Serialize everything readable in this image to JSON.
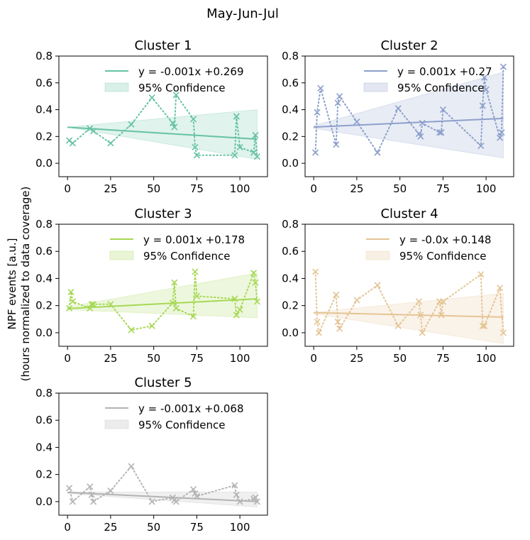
{
  "figure": {
    "title": "May-Jun-Jul",
    "ylabel_line1": "NPF events [a.u.]",
    "ylabel_line2": "(hours normalized to data coverage)"
  },
  "chart_data": [
    {
      "type": "scatter",
      "title": "Cluster 1",
      "color": "#66c2a5",
      "xlim": [
        -5,
        116
      ],
      "ylim": [
        -0.1,
        0.8
      ],
      "xticks": [
        "0",
        "25",
        "50",
        "75",
        "100"
      ],
      "yticks": [
        "0.0",
        "0.2",
        "0.4",
        "0.6",
        "0.8"
      ],
      "fit_label": "y = -0.001x +0.269",
      "ci_label": "95% Confidence",
      "fit": {
        "intercept": 0.269,
        "end": 0.18
      },
      "ci": {
        "upper": [
          0.27,
          0.4
        ],
        "lower": [
          0.27,
          0.03
        ]
      },
      "points": [
        [
          1,
          0.17
        ],
        [
          3,
          0.15
        ],
        [
          13,
          0.26
        ],
        [
          15,
          0.24
        ],
        [
          25,
          0.15
        ],
        [
          37,
          0.29
        ],
        [
          49,
          0.49
        ],
        [
          61,
          0.3
        ],
        [
          62,
          0.27
        ],
        [
          63,
          0.51
        ],
        [
          73,
          0.33
        ],
        [
          74,
          0.12
        ],
        [
          75,
          0.06
        ],
        [
          97,
          0.06
        ],
        [
          98,
          0.35
        ],
        [
          100,
          0.12
        ],
        [
          108,
          0.08
        ],
        [
          109,
          0.21
        ],
        [
          110,
          0.05
        ]
      ]
    },
    {
      "type": "scatter",
      "title": "Cluster 2",
      "color": "#8da0cb",
      "xlim": [
        -5,
        116
      ],
      "ylim": [
        -0.1,
        0.8
      ],
      "xticks": [
        "0",
        "25",
        "50",
        "75",
        "100"
      ],
      "yticks": [
        "0.0",
        "0.2",
        "0.4",
        "0.6",
        "0.8"
      ],
      "fit_label": "y = 0.001x +0.27",
      "ci_label": "95% Confidence",
      "fit": {
        "intercept": 0.27,
        "end": 0.335
      },
      "ci": {
        "upper": [
          0.28,
          0.68
        ],
        "lower": [
          0.26,
          0.04
        ]
      },
      "points": [
        [
          1,
          0.08
        ],
        [
          2,
          0.38
        ],
        [
          4,
          0.56
        ],
        [
          13,
          0.14
        ],
        [
          14,
          0.45
        ],
        [
          15,
          0.5
        ],
        [
          25,
          0.31
        ],
        [
          37,
          0.08
        ],
        [
          49,
          0.41
        ],
        [
          61,
          0.22
        ],
        [
          62,
          0.2
        ],
        [
          63,
          0.3
        ],
        [
          73,
          0.23
        ],
        [
          74,
          0.23
        ],
        [
          75,
          0.4
        ],
        [
          97,
          0.13
        ],
        [
          98,
          0.43
        ],
        [
          99,
          0.64
        ],
        [
          100,
          0.55
        ],
        [
          108,
          0.19
        ],
        [
          109,
          0.23
        ],
        [
          110,
          0.72
        ]
      ]
    },
    {
      "type": "scatter",
      "title": "Cluster 3",
      "color": "#a6d854",
      "xlim": [
        -5,
        116
      ],
      "ylim": [
        -0.1,
        0.8
      ],
      "xticks": [
        "0",
        "25",
        "50",
        "75",
        "100"
      ],
      "yticks": [
        "0.0",
        "0.2",
        "0.4",
        "0.6",
        "0.8"
      ],
      "fit_label": "y = 0.001x +0.178",
      "ci_label": "95% Confidence",
      "fit": {
        "intercept": 0.178,
        "end": 0.25
      },
      "ci": {
        "upper": [
          0.19,
          0.44
        ],
        "lower": [
          0.17,
          0.11
        ]
      },
      "points": [
        [
          1,
          0.18
        ],
        [
          2,
          0.3
        ],
        [
          3,
          0.23
        ],
        [
          13,
          0.18
        ],
        [
          14,
          0.21
        ],
        [
          15,
          0.21
        ],
        [
          25,
          0.21
        ],
        [
          37,
          0.02
        ],
        [
          49,
          0.05
        ],
        [
          61,
          0.22
        ],
        [
          62,
          0.37
        ],
        [
          63,
          0.18
        ],
        [
          73,
          0.12
        ],
        [
          74,
          0.45
        ],
        [
          75,
          0.27
        ],
        [
          97,
          0.25
        ],
        [
          98,
          0.13
        ],
        [
          100,
          0.17
        ],
        [
          108,
          0.44
        ],
        [
          109,
          0.37
        ],
        [
          110,
          0.23
        ]
      ]
    },
    {
      "type": "scatter",
      "title": "Cluster 4",
      "color": "#e5c494",
      "xlim": [
        -5,
        116
      ],
      "ylim": [
        -0.1,
        0.8
      ],
      "xticks": [
        "0",
        "25",
        "50",
        "75",
        "100"
      ],
      "yticks": [
        "0.0",
        "0.2",
        "0.4",
        "0.6",
        "0.8"
      ],
      "fit_label": "y = -0.0x +0.148",
      "ci_label": "95% Confidence",
      "fit": {
        "intercept": 0.148,
        "end": 0.115
      },
      "ci": {
        "upper": [
          0.15,
          0.29
        ],
        "lower": [
          0.14,
          -0.08
        ]
      },
      "points": [
        [
          1,
          0.45
        ],
        [
          2,
          0.08
        ],
        [
          3,
          0.0
        ],
        [
          13,
          0.28
        ],
        [
          14,
          0.08
        ],
        [
          15,
          0.03
        ],
        [
          25,
          0.24
        ],
        [
          37,
          0.35
        ],
        [
          49,
          0.05
        ],
        [
          61,
          0.23
        ],
        [
          62,
          0.13
        ],
        [
          63,
          0.0
        ],
        [
          73,
          0.23
        ],
        [
          74,
          0.13
        ],
        [
          75,
          0.23
        ],
        [
          97,
          0.43
        ],
        [
          98,
          0.05
        ],
        [
          99,
          0.05
        ],
        [
          108,
          0.33
        ],
        [
          110,
          0.0
        ]
      ]
    },
    {
      "type": "scatter",
      "title": "Cluster 5",
      "color": "#b3b3b3",
      "xlim": [
        -5,
        116
      ],
      "ylim": [
        -0.1,
        0.8
      ],
      "xticks": [
        "0",
        "25",
        "50",
        "75",
        "100"
      ],
      "yticks": [
        "0.0",
        "0.2",
        "0.4",
        "0.6",
        "0.8"
      ],
      "fit_label": "y = -0.001x +0.068",
      "ci_label": "95% Confidence",
      "fit": {
        "intercept": 0.068,
        "end": 0.0
      },
      "ci": {
        "upper": [
          0.07,
          0.07
        ],
        "lower": [
          0.06,
          -0.04
        ]
      },
      "points": [
        [
          1,
          0.1
        ],
        [
          3,
          0.0
        ],
        [
          13,
          0.11
        ],
        [
          14,
          0.05
        ],
        [
          15,
          0.0
        ],
        [
          25,
          0.08
        ],
        [
          37,
          0.26
        ],
        [
          49,
          0.0
        ],
        [
          61,
          0.03
        ],
        [
          62,
          0.01
        ],
        [
          63,
          0.0
        ],
        [
          73,
          0.09
        ],
        [
          74,
          0.06
        ],
        [
          75,
          0.04
        ],
        [
          97,
          0.12
        ],
        [
          98,
          0.05
        ],
        [
          100,
          0.0
        ],
        [
          108,
          0.02
        ],
        [
          109,
          0.03
        ],
        [
          110,
          0.0
        ]
      ]
    }
  ]
}
